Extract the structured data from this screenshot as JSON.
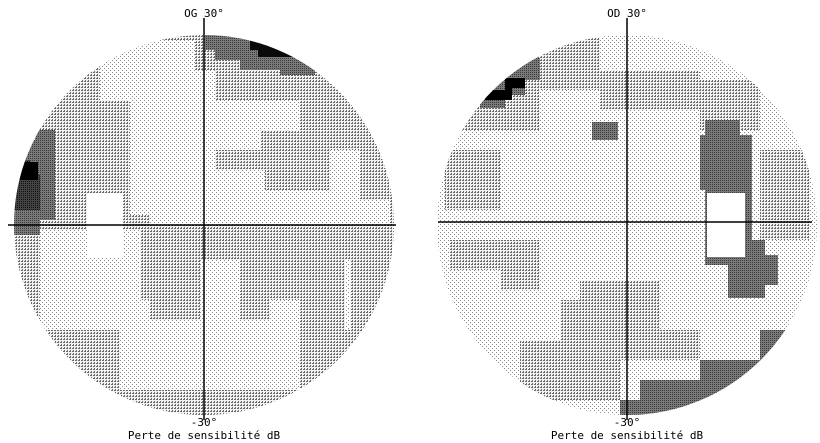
{
  "fields": [
    {
      "eye_label": "OG 30°",
      "bottom_label": "-30°",
      "caption": "Perte de sensibilité dB",
      "side": "left"
    },
    {
      "eye_label": "OD 30°",
      "bottom_label": "-30°",
      "caption": "Perte de sensibilité dB",
      "side": "right"
    }
  ],
  "colors": {
    "background": "#ffffff",
    "ink": "#000000",
    "light_dots": "#b0b0b0",
    "medium_dots": "#808080",
    "dark_gray": "#4a4a4a",
    "black": "#000000"
  }
}
